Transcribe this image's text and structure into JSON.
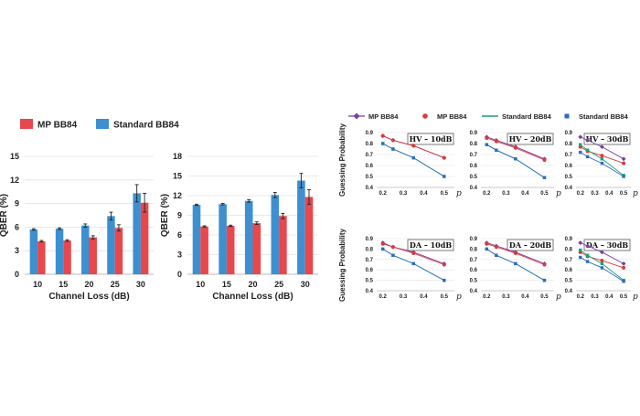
{
  "legend_left": [
    {
      "name": "MP BB84",
      "color": "#e8474c"
    },
    {
      "name": "Standard BB84",
      "color": "#3e8fd0"
    }
  ],
  "legend_right": [
    {
      "name": "MP BB84",
      "color": "#7b3fa0",
      "marker": "diamond"
    },
    {
      "name": "MP BB84",
      "color": "#d9393b",
      "marker": "circle"
    },
    {
      "name": "Standard BB84",
      "color": "#1aa07a",
      "marker": "line"
    },
    {
      "name": "Standard BB84",
      "color": "#2f6bbf",
      "marker": "square"
    }
  ],
  "chart_data": [
    {
      "type": "bar",
      "categories": [
        "10",
        "15",
        "20",
        "25",
        "30"
      ],
      "xlabel": "Channel Loss (dB)",
      "ylabel": "QBER (%)",
      "ylim": [
        0,
        15
      ],
      "yticks": [
        0,
        3,
        6,
        9,
        12,
        15
      ],
      "series": [
        {
          "name": "Standard BB84",
          "values": [
            5.7,
            5.8,
            6.2,
            7.4,
            10.3
          ],
          "errors": [
            0.1,
            0.1,
            0.2,
            0.5,
            1.1
          ]
        },
        {
          "name": "MP BB84",
          "values": [
            4.2,
            4.3,
            4.7,
            5.9,
            9.1
          ],
          "errors": [
            0.1,
            0.1,
            0.2,
            0.4,
            1.2
          ]
        }
      ]
    },
    {
      "type": "bar",
      "categories": [
        "10",
        "15",
        "20",
        "25",
        "30"
      ],
      "xlabel": "Channel Loss (dB)",
      "ylabel": "QBER (%)",
      "ylim": [
        0,
        18
      ],
      "yticks": [
        0,
        3,
        6,
        9,
        12,
        15,
        18
      ],
      "series": [
        {
          "name": "Standard BB84",
          "values": [
            10.6,
            10.7,
            11.2,
            12.1,
            14.3
          ],
          "errors": [
            0.1,
            0.1,
            0.2,
            0.4,
            1.1
          ]
        },
        {
          "name": "MP BB84",
          "values": [
            7.3,
            7.4,
            7.8,
            8.9,
            11.8
          ],
          "errors": [
            0.1,
            0.1,
            0.2,
            0.4,
            1.1
          ]
        }
      ]
    },
    {
      "type": "line",
      "grid": "3x2",
      "ylabel": "Guessing Probability",
      "xlabel": "p",
      "xticks": [
        0.2,
        0.3,
        0.4,
        0.5
      ],
      "yticks": [
        0.4,
        0.5,
        0.6,
        0.7,
        0.8,
        0.9
      ],
      "xlim": [
        0.17,
        0.55
      ],
      "ylim": [
        0.4,
        0.9
      ],
      "panels": [
        {
          "title": "HV – 10dB",
          "series": [
            {
              "x": [
                0.2,
                0.25,
                0.35,
                0.5
              ],
              "y": [
                0.87,
                0.83,
                0.78,
                0.67
              ]
            },
            {
              "x": [
                0.2,
                0.25,
                0.35,
                0.5
              ],
              "y": [
                0.87,
                0.83,
                0.78,
                0.67
              ]
            },
            {
              "x": [
                0.2,
                0.25,
                0.35,
                0.5
              ],
              "y": [
                0.8,
                0.75,
                0.67,
                0.5
              ]
            },
            {
              "x": [
                0.2,
                0.25,
                0.35,
                0.5
              ],
              "y": [
                0.8,
                0.75,
                0.67,
                0.5
              ]
            }
          ]
        },
        {
          "title": "HV – 20dB",
          "series": [
            {
              "x": [
                0.2,
                0.25,
                0.35,
                0.5
              ],
              "y": [
                0.86,
                0.83,
                0.77,
                0.66
              ]
            },
            {
              "x": [
                0.2,
                0.25,
                0.35,
                0.5
              ],
              "y": [
                0.85,
                0.82,
                0.76,
                0.65
              ]
            },
            {
              "x": [
                0.2,
                0.25,
                0.35,
                0.5
              ],
              "y": [
                0.79,
                0.74,
                0.66,
                0.49
              ]
            },
            {
              "x": [
                0.2,
                0.25,
                0.35,
                0.5
              ],
              "y": [
                0.79,
                0.74,
                0.66,
                0.49
              ]
            }
          ]
        },
        {
          "title": "HV – 30dB",
          "series": [
            {
              "x": [
                0.2,
                0.25,
                0.35,
                0.5
              ],
              "y": [
                0.86,
                0.83,
                0.77,
                0.66
              ]
            },
            {
              "x": [
                0.2,
                0.25,
                0.35,
                0.5
              ],
              "y": [
                0.77,
                0.73,
                0.69,
                0.62
              ]
            },
            {
              "x": [
                0.2,
                0.25,
                0.35,
                0.5
              ],
              "y": [
                0.79,
                0.74,
                0.66,
                0.51
              ]
            },
            {
              "x": [
                0.2,
                0.25,
                0.35,
                0.5
              ],
              "y": [
                0.72,
                0.68,
                0.62,
                0.5
              ]
            }
          ]
        },
        {
          "title": "DA – 10dB",
          "series": [
            {
              "x": [
                0.2,
                0.25,
                0.35,
                0.5
              ],
              "y": [
                0.86,
                0.82,
                0.77,
                0.66
              ]
            },
            {
              "x": [
                0.2,
                0.25,
                0.35,
                0.5
              ],
              "y": [
                0.85,
                0.82,
                0.76,
                0.65
              ]
            },
            {
              "x": [
                0.2,
                0.25,
                0.35,
                0.5
              ],
              "y": [
                0.8,
                0.74,
                0.66,
                0.5
              ]
            },
            {
              "x": [
                0.2,
                0.25,
                0.35,
                0.5
              ],
              "y": [
                0.8,
                0.74,
                0.66,
                0.5
              ]
            }
          ]
        },
        {
          "title": "DA – 20dB",
          "series": [
            {
              "x": [
                0.2,
                0.25,
                0.35,
                0.5
              ],
              "y": [
                0.86,
                0.83,
                0.77,
                0.66
              ]
            },
            {
              "x": [
                0.2,
                0.25,
                0.35,
                0.5
              ],
              "y": [
                0.85,
                0.82,
                0.76,
                0.65
              ]
            },
            {
              "x": [
                0.2,
                0.25,
                0.35,
                0.5
              ],
              "y": [
                0.8,
                0.74,
                0.66,
                0.5
              ]
            },
            {
              "x": [
                0.2,
                0.25,
                0.35,
                0.5
              ],
              "y": [
                0.8,
                0.74,
                0.66,
                0.5
              ]
            }
          ]
        },
        {
          "title": "DA – 30dB",
          "series": [
            {
              "x": [
                0.2,
                0.25,
                0.35,
                0.5
              ],
              "y": [
                0.86,
                0.83,
                0.77,
                0.66
              ]
            },
            {
              "x": [
                0.2,
                0.25,
                0.35,
                0.5
              ],
              "y": [
                0.77,
                0.73,
                0.69,
                0.62
              ]
            },
            {
              "x": [
                0.2,
                0.25,
                0.35,
                0.5
              ],
              "y": [
                0.79,
                0.74,
                0.66,
                0.5
              ]
            },
            {
              "x": [
                0.2,
                0.25,
                0.35,
                0.5
              ],
              "y": [
                0.72,
                0.68,
                0.62,
                0.49
              ]
            }
          ]
        }
      ]
    }
  ]
}
